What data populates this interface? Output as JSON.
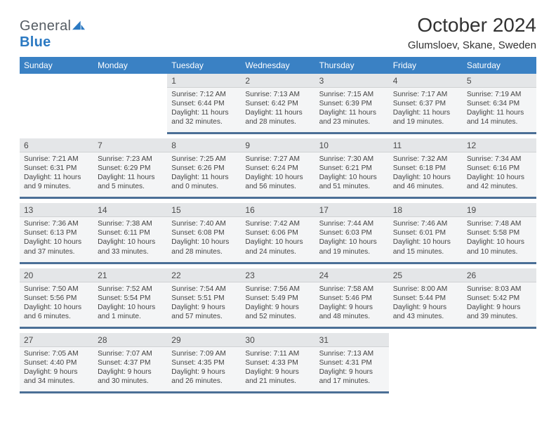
{
  "brand": {
    "text1": "General",
    "text2": "Blue"
  },
  "title": "October 2024",
  "location": "Glumsloev, Skane, Sweden",
  "colors": {
    "header_bg": "#3a81c4",
    "header_text": "#ffffff",
    "daynum_bg": "#e4e6e8",
    "details_bg": "#f4f5f6",
    "divider": "#4b6f96",
    "text": "#444444",
    "title_color": "#323232"
  },
  "day_headers": [
    "Sunday",
    "Monday",
    "Tuesday",
    "Wednesday",
    "Thursday",
    "Friday",
    "Saturday"
  ],
  "weeks": [
    [
      null,
      null,
      {
        "n": "1",
        "sunrise": "7:12 AM",
        "sunset": "6:44 PM",
        "daylight": "11 hours and 32 minutes."
      },
      {
        "n": "2",
        "sunrise": "7:13 AM",
        "sunset": "6:42 PM",
        "daylight": "11 hours and 28 minutes."
      },
      {
        "n": "3",
        "sunrise": "7:15 AM",
        "sunset": "6:39 PM",
        "daylight": "11 hours and 23 minutes."
      },
      {
        "n": "4",
        "sunrise": "7:17 AM",
        "sunset": "6:37 PM",
        "daylight": "11 hours and 19 minutes."
      },
      {
        "n": "5",
        "sunrise": "7:19 AM",
        "sunset": "6:34 PM",
        "daylight": "11 hours and 14 minutes."
      }
    ],
    [
      {
        "n": "6",
        "sunrise": "7:21 AM",
        "sunset": "6:31 PM",
        "daylight": "11 hours and 9 minutes."
      },
      {
        "n": "7",
        "sunrise": "7:23 AM",
        "sunset": "6:29 PM",
        "daylight": "11 hours and 5 minutes."
      },
      {
        "n": "8",
        "sunrise": "7:25 AM",
        "sunset": "6:26 PM",
        "daylight": "11 hours and 0 minutes."
      },
      {
        "n": "9",
        "sunrise": "7:27 AM",
        "sunset": "6:24 PM",
        "daylight": "10 hours and 56 minutes."
      },
      {
        "n": "10",
        "sunrise": "7:30 AM",
        "sunset": "6:21 PM",
        "daylight": "10 hours and 51 minutes."
      },
      {
        "n": "11",
        "sunrise": "7:32 AM",
        "sunset": "6:18 PM",
        "daylight": "10 hours and 46 minutes."
      },
      {
        "n": "12",
        "sunrise": "7:34 AM",
        "sunset": "6:16 PM",
        "daylight": "10 hours and 42 minutes."
      }
    ],
    [
      {
        "n": "13",
        "sunrise": "7:36 AM",
        "sunset": "6:13 PM",
        "daylight": "10 hours and 37 minutes."
      },
      {
        "n": "14",
        "sunrise": "7:38 AM",
        "sunset": "6:11 PM",
        "daylight": "10 hours and 33 minutes."
      },
      {
        "n": "15",
        "sunrise": "7:40 AM",
        "sunset": "6:08 PM",
        "daylight": "10 hours and 28 minutes."
      },
      {
        "n": "16",
        "sunrise": "7:42 AM",
        "sunset": "6:06 PM",
        "daylight": "10 hours and 24 minutes."
      },
      {
        "n": "17",
        "sunrise": "7:44 AM",
        "sunset": "6:03 PM",
        "daylight": "10 hours and 19 minutes."
      },
      {
        "n": "18",
        "sunrise": "7:46 AM",
        "sunset": "6:01 PM",
        "daylight": "10 hours and 15 minutes."
      },
      {
        "n": "19",
        "sunrise": "7:48 AM",
        "sunset": "5:58 PM",
        "daylight": "10 hours and 10 minutes."
      }
    ],
    [
      {
        "n": "20",
        "sunrise": "7:50 AM",
        "sunset": "5:56 PM",
        "daylight": "10 hours and 6 minutes."
      },
      {
        "n": "21",
        "sunrise": "7:52 AM",
        "sunset": "5:54 PM",
        "daylight": "10 hours and 1 minute."
      },
      {
        "n": "22",
        "sunrise": "7:54 AM",
        "sunset": "5:51 PM",
        "daylight": "9 hours and 57 minutes."
      },
      {
        "n": "23",
        "sunrise": "7:56 AM",
        "sunset": "5:49 PM",
        "daylight": "9 hours and 52 minutes."
      },
      {
        "n": "24",
        "sunrise": "7:58 AM",
        "sunset": "5:46 PM",
        "daylight": "9 hours and 48 minutes."
      },
      {
        "n": "25",
        "sunrise": "8:00 AM",
        "sunset": "5:44 PM",
        "daylight": "9 hours and 43 minutes."
      },
      {
        "n": "26",
        "sunrise": "8:03 AM",
        "sunset": "5:42 PM",
        "daylight": "9 hours and 39 minutes."
      }
    ],
    [
      {
        "n": "27",
        "sunrise": "7:05 AM",
        "sunset": "4:40 PM",
        "daylight": "9 hours and 34 minutes."
      },
      {
        "n": "28",
        "sunrise": "7:07 AM",
        "sunset": "4:37 PM",
        "daylight": "9 hours and 30 minutes."
      },
      {
        "n": "29",
        "sunrise": "7:09 AM",
        "sunset": "4:35 PM",
        "daylight": "9 hours and 26 minutes."
      },
      {
        "n": "30",
        "sunrise": "7:11 AM",
        "sunset": "4:33 PM",
        "daylight": "9 hours and 21 minutes."
      },
      {
        "n": "31",
        "sunrise": "7:13 AM",
        "sunset": "4:31 PM",
        "daylight": "9 hours and 17 minutes."
      },
      null,
      null
    ]
  ],
  "labels": {
    "sunrise": "Sunrise:",
    "sunset": "Sunset:",
    "daylight": "Daylight:"
  }
}
